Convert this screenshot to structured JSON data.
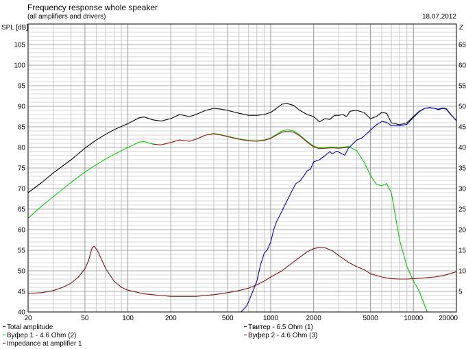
{
  "chart_data": {
    "type": "line",
    "title": "Frequency response whole speaker",
    "subtitle": "(all amplifiers and drivers)",
    "date": "18.07.2012",
    "ylabel_left": "SPL [dB]",
    "ylabel_right": "Z",
    "x_scale": "log",
    "xlim": [
      20,
      20000
    ],
    "ylim": [
      40,
      110
    ],
    "ylim_right": [
      0,
      70
    ],
    "grid": true,
    "x_ticks": [
      {
        "value": 20,
        "label": "20"
      },
      {
        "value": 50,
        "label": "50"
      },
      {
        "value": 100,
        "label": "100"
      },
      {
        "value": 200,
        "label": "200"
      },
      {
        "value": 500,
        "label": "500"
      },
      {
        "value": 1000,
        "label": "1000"
      },
      {
        "value": 2000,
        "label": "2000"
      },
      {
        "value": 5000,
        "label": "5000"
      },
      {
        "value": 10000,
        "label": "10000"
      },
      {
        "value": 20000,
        "label": "20000"
      }
    ],
    "y_ticks": [
      {
        "value": 40,
        "label": "40"
      },
      {
        "value": 45,
        "label": "45"
      },
      {
        "value": 50,
        "label": "50"
      },
      {
        "value": 55,
        "label": "55"
      },
      {
        "value": 60,
        "label": "60"
      },
      {
        "value": 65,
        "label": "65"
      },
      {
        "value": 70,
        "label": "70"
      },
      {
        "value": 75,
        "label": "75"
      },
      {
        "value": 80,
        "label": "80"
      },
      {
        "value": 85,
        "label": "85"
      },
      {
        "value": 90,
        "label": "90"
      },
      {
        "value": 95,
        "label": "95"
      },
      {
        "value": 100,
        "label": "100"
      },
      {
        "value": 105,
        "label": "105"
      }
    ],
    "y_ticks_right": [
      {
        "value": 5,
        "label": "5"
      },
      {
        "value": 10,
        "label": "10"
      },
      {
        "value": 15,
        "label": "15"
      },
      {
        "value": 20,
        "label": "20"
      },
      {
        "value": 25,
        "label": "25"
      },
      {
        "value": 30,
        "label": "30"
      },
      {
        "value": 35,
        "label": "35"
      },
      {
        "value": 40,
        "label": "40"
      },
      {
        "value": 45,
        "label": "45"
      },
      {
        "value": 50,
        "label": "50"
      },
      {
        "value": 55,
        "label": "55"
      },
      {
        "value": 60,
        "label": "60"
      },
      {
        "value": 65,
        "label": "65"
      }
    ],
    "legend_position": "bottom",
    "series": [
      {
        "name": "Total amplitude",
        "color": "#000000",
        "points": [
          [
            20,
            69
          ],
          [
            25,
            71.5
          ],
          [
            30,
            73.8
          ],
          [
            40,
            77
          ],
          [
            50,
            79.8
          ],
          [
            60,
            81.8
          ],
          [
            70,
            83.2
          ],
          [
            80,
            84.3
          ],
          [
            100,
            85.8
          ],
          [
            120,
            87.2
          ],
          [
            130,
            87.4
          ],
          [
            150,
            86.7
          ],
          [
            170,
            86.4
          ],
          [
            200,
            87
          ],
          [
            230,
            88
          ],
          [
            270,
            87.5
          ],
          [
            300,
            88
          ],
          [
            350,
            89
          ],
          [
            400,
            89.5
          ],
          [
            450,
            89.3
          ],
          [
            500,
            89
          ],
          [
            600,
            88.3
          ],
          [
            700,
            87.8
          ],
          [
            800,
            87.8
          ],
          [
            900,
            88
          ],
          [
            1000,
            88.5
          ],
          [
            1100,
            89.5
          ],
          [
            1200,
            90.5
          ],
          [
            1300,
            90.7
          ],
          [
            1450,
            90.2
          ],
          [
            1600,
            89
          ],
          [
            1800,
            88
          ],
          [
            2000,
            87.5
          ],
          [
            2200,
            86.2
          ],
          [
            2400,
            87
          ],
          [
            2600,
            86.8
          ],
          [
            2800,
            87.8
          ],
          [
            3000,
            87.8
          ],
          [
            3200,
            88
          ],
          [
            3400,
            87.5
          ],
          [
            3600,
            88.8
          ],
          [
            4000,
            89
          ],
          [
            4500,
            88.5
          ],
          [
            5000,
            87
          ],
          [
            5500,
            87.5
          ],
          [
            6000,
            88.5
          ],
          [
            6500,
            88.3
          ],
          [
            7000,
            86
          ],
          [
            8000,
            85.5
          ],
          [
            9000,
            86
          ],
          [
            10000,
            87.5
          ],
          [
            11000,
            88.8
          ],
          [
            12000,
            89.5
          ],
          [
            13000,
            89.7
          ],
          [
            14000,
            89.5
          ],
          [
            15000,
            89.2
          ],
          [
            16000,
            89.5
          ],
          [
            17000,
            89.3
          ],
          [
            18000,
            88.2
          ],
          [
            20000,
            86.5
          ]
        ]
      },
      {
        "name": "Вуфер 1 - 4.6 Ohm (2)",
        "color": "#00cc00",
        "points": [
          [
            20,
            62.8
          ],
          [
            25,
            65.8
          ],
          [
            30,
            68
          ],
          [
            40,
            71.5
          ],
          [
            50,
            74
          ],
          [
            60,
            75.8
          ],
          [
            70,
            77.2
          ],
          [
            80,
            78.3
          ],
          [
            100,
            80
          ],
          [
            120,
            81.3
          ],
          [
            130,
            81.4
          ],
          [
            150,
            80.8
          ],
          [
            170,
            80.6
          ],
          [
            200,
            81.2
          ],
          [
            230,
            81.8
          ],
          [
            270,
            81.5
          ],
          [
            300,
            82
          ],
          [
            350,
            83
          ],
          [
            400,
            83.4
          ],
          [
            450,
            83.1
          ],
          [
            500,
            82.7
          ],
          [
            600,
            82.1
          ],
          [
            700,
            81.7
          ],
          [
            800,
            81.6
          ],
          [
            900,
            81.8
          ],
          [
            1000,
            82.3
          ],
          [
            1100,
            83.2
          ],
          [
            1200,
            84
          ],
          [
            1300,
            84.3
          ],
          [
            1450,
            84
          ],
          [
            1600,
            83
          ],
          [
            1800,
            81.5
          ],
          [
            2000,
            80.3
          ],
          [
            2200,
            79.9
          ],
          [
            2400,
            80
          ],
          [
            2700,
            80.1
          ],
          [
            3000,
            80
          ],
          [
            3500,
            80.2
          ],
          [
            4000,
            79.2
          ],
          [
            4500,
            76.5
          ],
          [
            5000,
            73.2
          ],
          [
            5500,
            71
          ],
          [
            6000,
            70.7
          ],
          [
            6500,
            71.2
          ],
          [
            7000,
            69
          ],
          [
            7500,
            63
          ],
          [
            8000,
            57.5
          ],
          [
            9000,
            51
          ],
          [
            10000,
            47.5
          ],
          [
            11000,
            45
          ],
          [
            12000,
            41.5
          ],
          [
            12500,
            40
          ]
        ]
      },
      {
        "name": "Вуфер 2 - 4.6 Ohm (3)",
        "color": "#9b1c1c",
        "points": [
          [
            150,
            80.8
          ],
          [
            170,
            80.6
          ],
          [
            200,
            81.2
          ],
          [
            230,
            81.8
          ],
          [
            270,
            81.5
          ],
          [
            300,
            82
          ],
          [
            350,
            83
          ],
          [
            400,
            83.3
          ],
          [
            450,
            83
          ],
          [
            500,
            82.6
          ],
          [
            600,
            82
          ],
          [
            700,
            81.6
          ],
          [
            800,
            81.5
          ],
          [
            900,
            81.7
          ],
          [
            1000,
            82.2
          ],
          [
            1100,
            83
          ],
          [
            1200,
            83.7
          ],
          [
            1300,
            83.9
          ],
          [
            1450,
            83.7
          ],
          [
            1600,
            82.8
          ],
          [
            1800,
            81.3
          ],
          [
            2000,
            80.1
          ],
          [
            2200,
            79.7
          ],
          [
            2400,
            79.8
          ],
          [
            2700,
            79.9
          ],
          [
            3000,
            79.8
          ],
          [
            3500,
            80
          ]
        ]
      },
      {
        "name": "Tвитер - 6.5 Ohm (1)",
        "color": "#0000cc",
        "points": [
          [
            20,
            40
          ],
          [
            500,
            40
          ],
          [
            620,
            40
          ],
          [
            680,
            41.5
          ],
          [
            720,
            43.5
          ],
          [
            760,
            45.5
          ],
          [
            800,
            47.5
          ],
          [
            850,
            51.5
          ],
          [
            900,
            54.2
          ],
          [
            950,
            55.2
          ],
          [
            1000,
            57
          ],
          [
            1050,
            60
          ],
          [
            1100,
            62
          ],
          [
            1200,
            64.5
          ],
          [
            1300,
            67
          ],
          [
            1400,
            69.2
          ],
          [
            1500,
            71.2
          ],
          [
            1600,
            71.8
          ],
          [
            1700,
            73
          ],
          [
            1800,
            74.3
          ],
          [
            1900,
            74.7
          ],
          [
            2000,
            76.5
          ],
          [
            2200,
            77
          ],
          [
            2400,
            78
          ],
          [
            2600,
            79
          ],
          [
            2700,
            78.4
          ],
          [
            2900,
            79.1
          ],
          [
            3100,
            78.6
          ],
          [
            3300,
            78.1
          ],
          [
            3500,
            79.8
          ],
          [
            3800,
            81
          ],
          [
            4000,
            81.8
          ],
          [
            4300,
            82.2
          ],
          [
            4600,
            83
          ],
          [
            5000,
            84.2
          ],
          [
            5500,
            85.5
          ],
          [
            6000,
            86.3
          ],
          [
            6500,
            86.1
          ],
          [
            7000,
            85.3
          ],
          [
            8000,
            85.3
          ],
          [
            9000,
            85.6
          ],
          [
            10000,
            87.3
          ],
          [
            11000,
            88.7
          ],
          [
            12000,
            89.5
          ],
          [
            13000,
            89.6
          ],
          [
            14000,
            89.5
          ],
          [
            15000,
            89.3
          ],
          [
            16000,
            89.6
          ],
          [
            17000,
            89.4
          ],
          [
            18000,
            88.3
          ],
          [
            20000,
            86.5
          ]
        ]
      },
      {
        "name": "Impedance at amplifier 1",
        "color": "#7a1010",
        "axis": "right",
        "points": [
          [
            20,
            4.5
          ],
          [
            25,
            4.7
          ],
          [
            30,
            5.2
          ],
          [
            35,
            6
          ],
          [
            40,
            7
          ],
          [
            45,
            8.5
          ],
          [
            50,
            10.5
          ],
          [
            53,
            12.5
          ],
          [
            56,
            15.5
          ],
          [
            58,
            16
          ],
          [
            61,
            15
          ],
          [
            65,
            13
          ],
          [
            70,
            10.5
          ],
          [
            80,
            7.5
          ],
          [
            90,
            6
          ],
          [
            100,
            5.3
          ],
          [
            130,
            4.4
          ],
          [
            170,
            4
          ],
          [
            200,
            3.8
          ],
          [
            300,
            3.8
          ],
          [
            400,
            4.2
          ],
          [
            500,
            4.7
          ],
          [
            600,
            5.2
          ],
          [
            700,
            5.8
          ],
          [
            800,
            6.6
          ],
          [
            900,
            7.5
          ],
          [
            1000,
            8.5
          ],
          [
            1200,
            10
          ],
          [
            1400,
            11.8
          ],
          [
            1600,
            13.3
          ],
          [
            1800,
            14.6
          ],
          [
            2000,
            15.4
          ],
          [
            2200,
            15.7
          ],
          [
            2400,
            15.6
          ],
          [
            2700,
            14.9
          ],
          [
            3000,
            13.7
          ],
          [
            3500,
            12.1
          ],
          [
            4000,
            11
          ],
          [
            4500,
            10.3
          ],
          [
            5000,
            9.3
          ],
          [
            6000,
            8.5
          ],
          [
            7000,
            8.1
          ],
          [
            8000,
            8
          ],
          [
            9000,
            8
          ],
          [
            10000,
            8.1
          ],
          [
            12000,
            8.3
          ],
          [
            14000,
            8.5
          ],
          [
            16000,
            8.8
          ],
          [
            18000,
            9.3
          ],
          [
            20000,
            9.8
          ]
        ]
      }
    ]
  }
}
